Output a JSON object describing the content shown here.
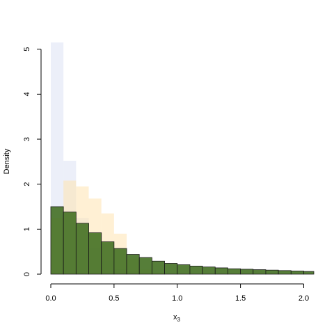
{
  "chart_data": {
    "type": "bar",
    "title": "",
    "xlabel_main": "x",
    "xlabel_sub": "3",
    "ylabel": "Density",
    "xlim": [
      0.0,
      2.08
    ],
    "ylim": [
      0,
      5.15
    ],
    "x_ticks": [
      {
        "value": 0.0,
        "label": "0.0"
      },
      {
        "value": 0.5,
        "label": "0.5"
      },
      {
        "value": 1.0,
        "label": "1.0"
      },
      {
        "value": 1.5,
        "label": "1.5"
      },
      {
        "value": 2.0,
        "label": "2.0"
      }
    ],
    "y_ticks": [
      {
        "value": 0,
        "label": "0"
      },
      {
        "value": 1,
        "label": "1"
      },
      {
        "value": 2,
        "label": "2"
      },
      {
        "value": 3,
        "label": "3"
      },
      {
        "value": 4,
        "label": "4"
      },
      {
        "value": 5,
        "label": "5"
      }
    ],
    "grid": false,
    "legend": "none",
    "bin_width": 0.1,
    "series": [
      {
        "color": "#c8d2ee",
        "opacity": 0.35,
        "outline": false,
        "bins": [
          {
            "x0": 0.0,
            "density": 5.15
          },
          {
            "x0": 0.1,
            "density": 2.52
          },
          {
            "x0": 0.2,
            "density": 1.25
          },
          {
            "x0": 0.3,
            "density": 0.58
          },
          {
            "x0": 0.4,
            "density": 0.3
          },
          {
            "x0": 0.5,
            "density": 0.12
          },
          {
            "x0": 0.6,
            "density": 0.05
          },
          {
            "x0": 0.7,
            "density": 0.02
          }
        ]
      },
      {
        "color": "#ffe3b0",
        "opacity": 0.55,
        "outline": false,
        "bins": [
          {
            "x0": 0.0,
            "density": 1.25
          },
          {
            "x0": 0.1,
            "density": 2.08
          },
          {
            "x0": 0.2,
            "density": 1.95
          },
          {
            "x0": 0.3,
            "density": 1.68
          },
          {
            "x0": 0.4,
            "density": 1.35
          },
          {
            "x0": 0.5,
            "density": 0.9
          },
          {
            "x0": 0.6,
            "density": 0.35
          },
          {
            "x0": 0.7,
            "density": 0.1
          },
          {
            "x0": 0.8,
            "density": 0.03
          }
        ]
      },
      {
        "color": "#3f6c1e",
        "opacity": 0.88,
        "outline": true,
        "bins": [
          {
            "x0": 0.0,
            "density": 1.5
          },
          {
            "x0": 0.1,
            "density": 1.38
          },
          {
            "x0": 0.2,
            "density": 1.13
          },
          {
            "x0": 0.3,
            "density": 0.92
          },
          {
            "x0": 0.4,
            "density": 0.72
          },
          {
            "x0": 0.5,
            "density": 0.57
          },
          {
            "x0": 0.6,
            "density": 0.44
          },
          {
            "x0": 0.7,
            "density": 0.37
          },
          {
            "x0": 0.8,
            "density": 0.29
          },
          {
            "x0": 0.9,
            "density": 0.24
          },
          {
            "x0": 1.0,
            "density": 0.21
          },
          {
            "x0": 1.1,
            "density": 0.18
          },
          {
            "x0": 1.2,
            "density": 0.16
          },
          {
            "x0": 1.3,
            "density": 0.14
          },
          {
            "x0": 1.4,
            "density": 0.12
          },
          {
            "x0": 1.5,
            "density": 0.11
          },
          {
            "x0": 1.6,
            "density": 0.1
          },
          {
            "x0": 1.7,
            "density": 0.09
          },
          {
            "x0": 1.8,
            "density": 0.08
          },
          {
            "x0": 1.9,
            "density": 0.07
          },
          {
            "x0": 2.0,
            "density": 0.06
          }
        ]
      }
    ]
  }
}
